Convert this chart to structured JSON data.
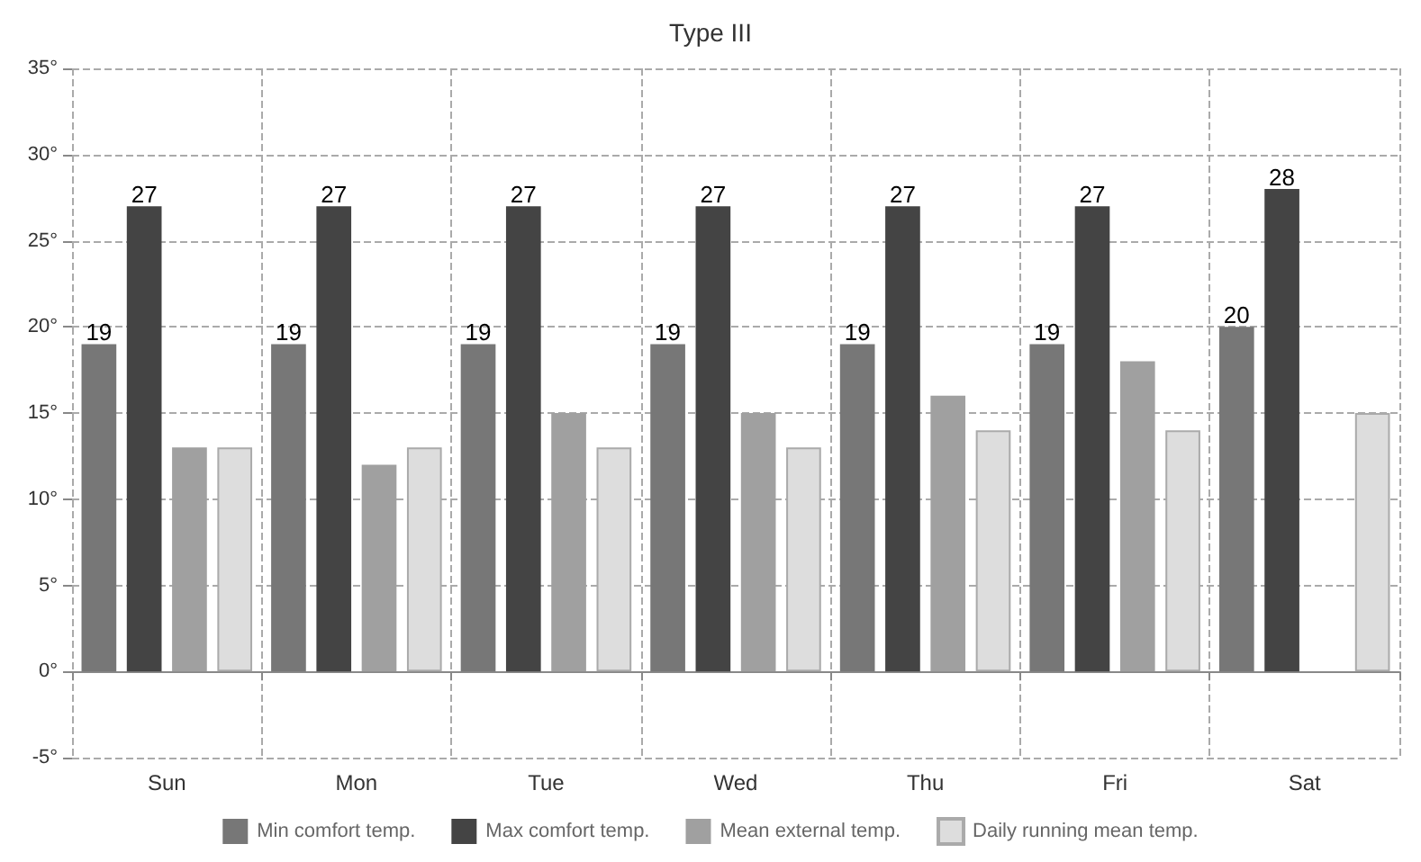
{
  "chart_data": {
    "type": "bar",
    "title": "Type III",
    "categories": [
      "Sun",
      "Mon",
      "Tue",
      "Wed",
      "Thu",
      "Fri",
      "Sat"
    ],
    "series": [
      {
        "name": "Min comfort temp.",
        "color": "#777777",
        "values": [
          19,
          19,
          19,
          19,
          19,
          19,
          20
        ],
        "value_labels": [
          "19",
          "19",
          "19",
          "19",
          "19",
          "19",
          "20"
        ]
      },
      {
        "name": "Max comfort temp.",
        "color": "#444444",
        "values": [
          27,
          27,
          27,
          27,
          27,
          27,
          28
        ],
        "value_labels": [
          "27",
          "27",
          "27",
          "27",
          "27",
          "27",
          "28"
        ]
      },
      {
        "name": "Mean external temp.",
        "color": "#a0a0a0",
        "values": [
          13,
          12,
          15,
          15,
          16,
          18,
          null
        ]
      },
      {
        "name": "Daily running mean temp.",
        "color": "#dddddd",
        "values": [
          13,
          13,
          13,
          13,
          14,
          14,
          15
        ]
      }
    ],
    "ylim": [
      -5,
      35
    ],
    "yticks": [
      {
        "value": -5,
        "label": "-5°"
      },
      {
        "value": 0,
        "label": "0°"
      },
      {
        "value": 5,
        "label": "5°"
      },
      {
        "value": 10,
        "label": "10°"
      },
      {
        "value": 15,
        "label": "15°"
      },
      {
        "value": 20,
        "label": "20°"
      },
      {
        "value": 25,
        "label": "25°"
      },
      {
        "value": 30,
        "label": "30°"
      },
      {
        "value": 35,
        "label": "35°"
      }
    ],
    "grid": true,
    "legend": "bottom"
  }
}
